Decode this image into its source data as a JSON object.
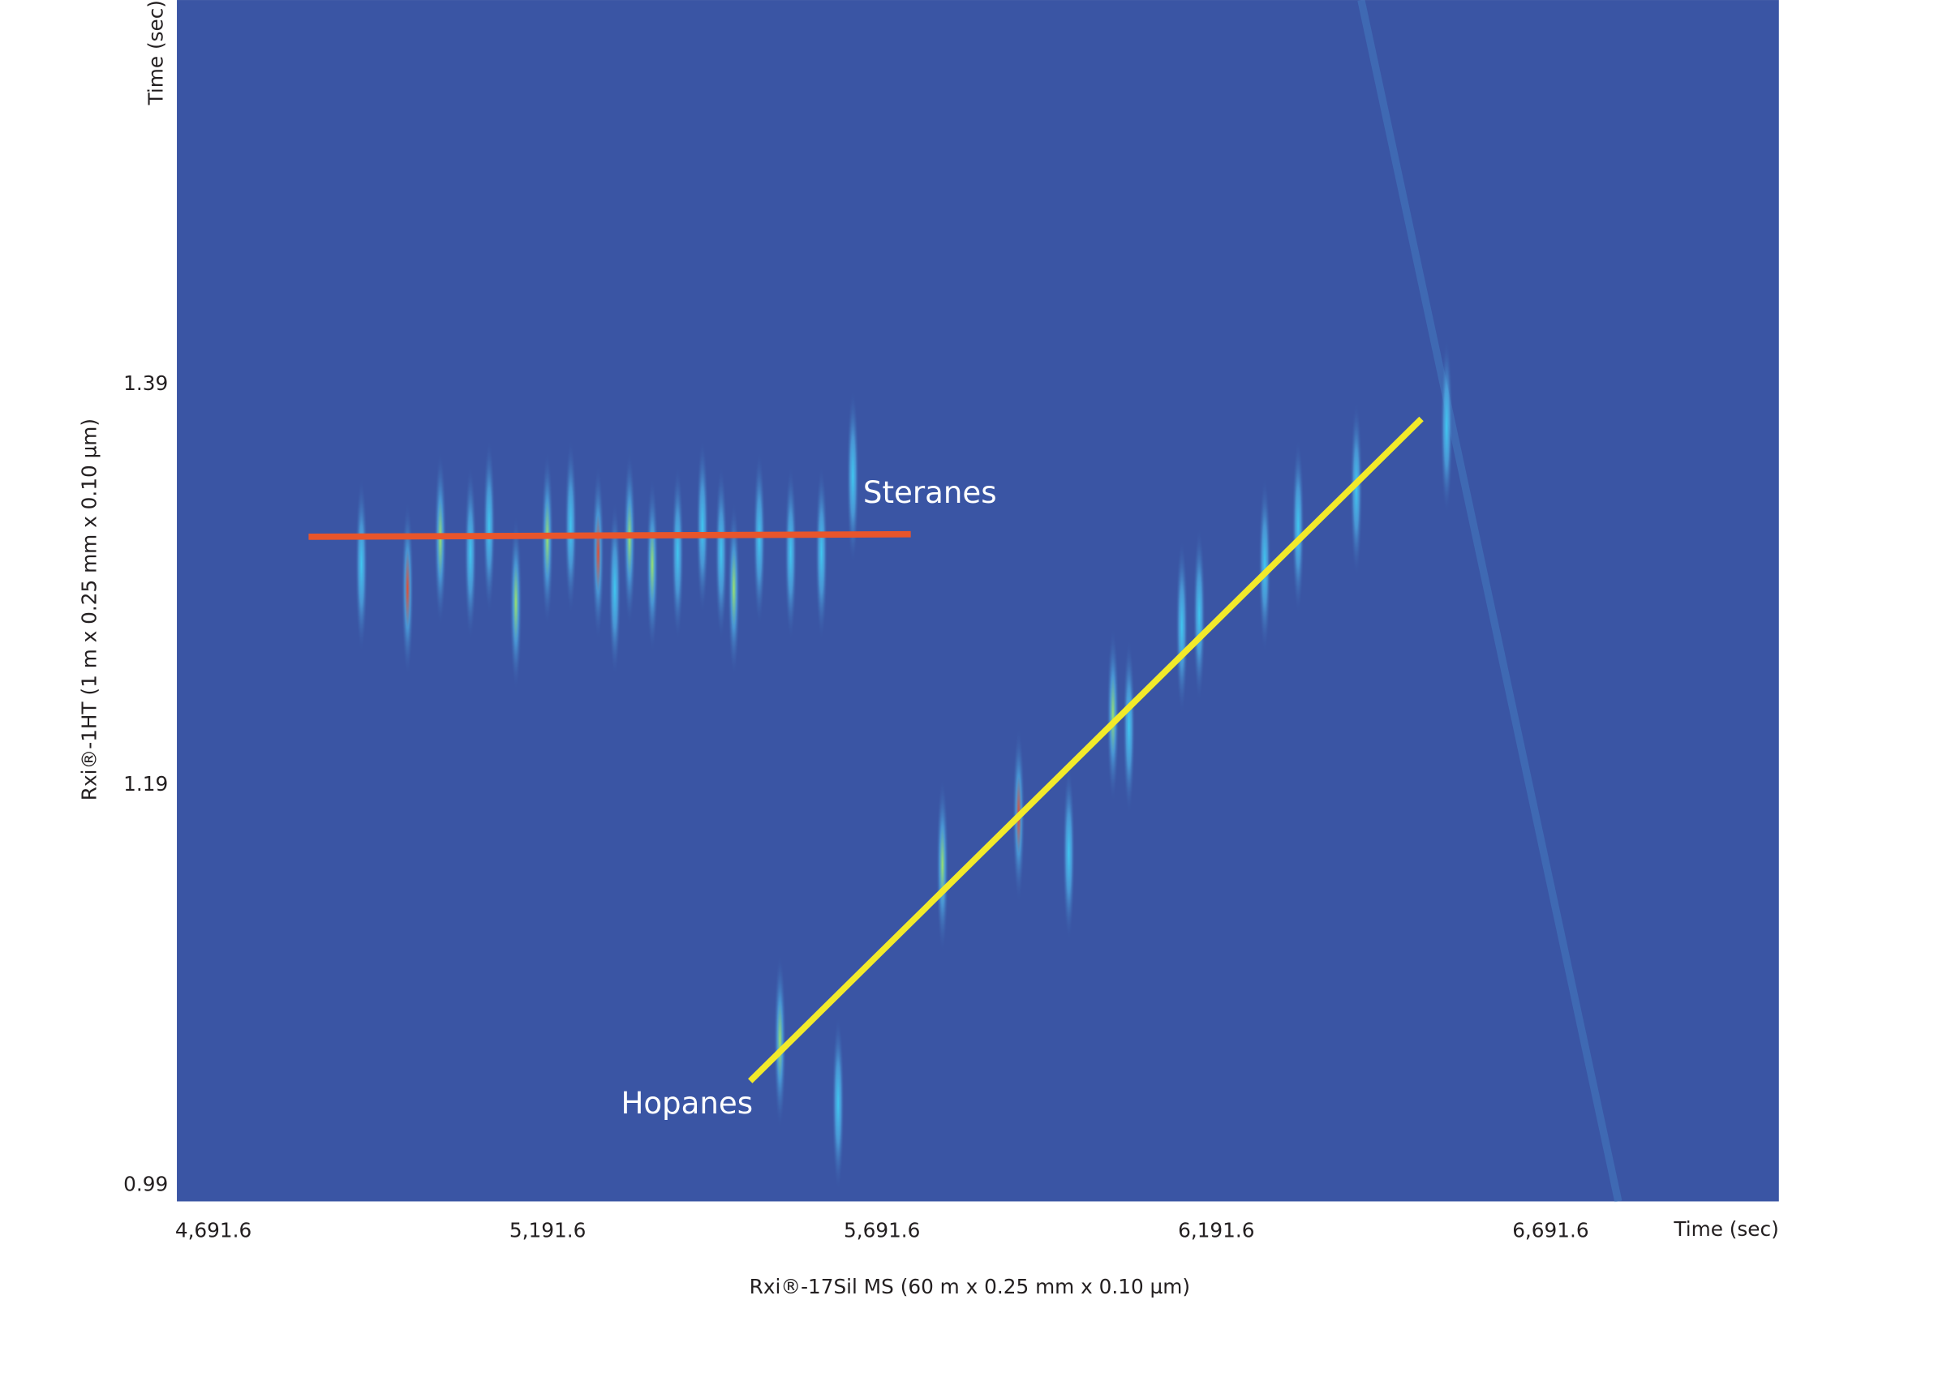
{
  "chart_data": {
    "type": "contour",
    "x_label": "Rxi®-17Sil MS (60 m x 0.25 mm x 0.10 µm)",
    "y_label": "Rxi®-1HT (1 m x 0.25 mm x 0.10 µm)",
    "x_unit_label": "Time (sec)",
    "y_unit_label": "Time (sec)",
    "annotations": [
      "Steranes",
      "Hopanes"
    ],
    "annotation_colors": [
      "#e8552b",
      "#f2ea2a"
    ],
    "background": "#3a55a4",
    "grid": false,
    "xlim": [
      4637,
      7033
    ],
    "ylim": [
      0.982,
      1.582
    ],
    "xticks": [
      {
        "value": 4691.6,
        "label": "4,691.6"
      },
      {
        "value": 5191.6,
        "label": "5,191.6"
      },
      {
        "value": 5691.6,
        "label": "5,691.6"
      },
      {
        "value": 6191.6,
        "label": "6,191.6"
      },
      {
        "value": 6691.6,
        "label": "6,691.6"
      }
    ],
    "yticks": [
      0.99,
      1.19,
      1.39
    ],
    "x": [
      4982,
      5031,
      5076,
      5104,
      5144,
      5191,
      5226,
      5267,
      5292,
      5314,
      5348,
      5386,
      5423,
      5451,
      5470,
      5508,
      5555,
      5601,
      5648,
      4913,
      5539,
      5626,
      5782,
      5896,
      5971,
      6037,
      6061,
      6140,
      6166,
      6264,
      6314,
      6401,
      6536
    ],
    "y": [
      1.288,
      1.313,
      1.306,
      1.319,
      1.281,
      1.313,
      1.319,
      1.306,
      1.288,
      1.313,
      1.3,
      1.306,
      1.319,
      1.306,
      1.288,
      1.313,
      1.306,
      1.306,
      1.344,
      1.3,
      1.062,
      1.031,
      1.15,
      1.175,
      1.156,
      1.225,
      1.219,
      1.269,
      1.275,
      1.3,
      1.319,
      1.338,
      1.369
    ],
    "colors": [
      "#e84a2a",
      "#9be36a",
      "#3fc8f0",
      "#3fc8f0",
      "#9be36a",
      "#9be36a",
      "#3fc8f0",
      "#e84a2a",
      "#3fc8f0",
      "#9be36a",
      "#9be36a",
      "#3fc8f0",
      "#3fc8f0",
      "#3fc8f0",
      "#9be36a",
      "#3fc8f0",
      "#3fc8f0",
      "#3fc8f0",
      "#3fc8f0",
      "#3fc8f0",
      "#9be36a",
      "#3fc8f0",
      "#9be36a",
      "#e84a2a",
      "#3fc8f0",
      "#9be36a",
      "#3fc8f0",
      "#3fc8f0",
      "#3fc8f0",
      "#3fc8f0",
      "#3fc8f0",
      "#3fc8f0",
      "#3fc8f0"
    ]
  }
}
